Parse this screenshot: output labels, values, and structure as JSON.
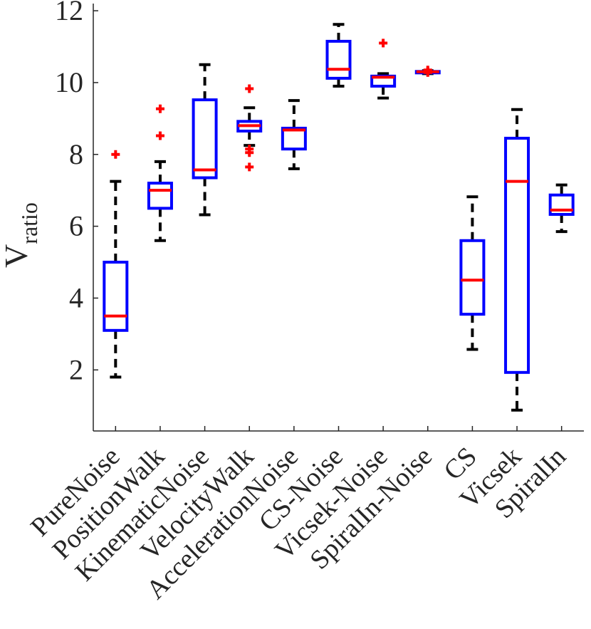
{
  "chart_data": {
    "type": "box",
    "title": "",
    "xlabel": "",
    "ylabel_main": "V",
    "ylabel_sub": "ratio",
    "ylim": [
      0.3,
      12.2
    ],
    "yticks": [
      2,
      4,
      6,
      8,
      10,
      12
    ],
    "grid": false,
    "colors": {
      "box": "#0000ff",
      "median": "#ff0000",
      "whisker": "#000000",
      "outlier": "#ff0000"
    },
    "categories": [
      "PureNoise",
      "PositionWalk",
      "KinematicNoise",
      "VelocityWalk",
      "AccelerationNoise",
      "CS-Noise",
      "Vicsek-Noise",
      "SpiralIn-Noise",
      "CS",
      "Vicsek",
      "SpiralIn"
    ],
    "boxes": [
      {
        "name": "PureNoise",
        "whisker_low": 1.8,
        "q1": 3.1,
        "median": 3.5,
        "q3": 5.0,
        "whisker_high": 7.25,
        "outliers": [
          8.0
        ]
      },
      {
        "name": "PositionWalk",
        "whisker_low": 5.6,
        "q1": 6.5,
        "median": 7.0,
        "q3": 7.2,
        "whisker_high": 7.8,
        "outliers": [
          8.52,
          9.27
        ]
      },
      {
        "name": "KinematicNoise",
        "whisker_low": 6.32,
        "q1": 7.35,
        "median": 7.57,
        "q3": 9.52,
        "whisker_high": 10.5,
        "outliers": []
      },
      {
        "name": "VelocityWalk",
        "whisker_low": 8.25,
        "q1": 8.65,
        "median": 8.8,
        "q3": 8.92,
        "whisker_high": 9.3,
        "outliers": [
          7.65,
          8.05,
          8.15,
          9.83
        ]
      },
      {
        "name": "AccelerationNoise",
        "whisker_low": 7.6,
        "q1": 8.15,
        "median": 8.68,
        "q3": 8.73,
        "whisker_high": 9.5,
        "outliers": []
      },
      {
        "name": "CS-Noise",
        "whisker_low": 9.9,
        "q1": 10.12,
        "median": 10.37,
        "q3": 11.15,
        "whisker_high": 11.62,
        "outliers": []
      },
      {
        "name": "Vicsek-Noise",
        "whisker_low": 9.57,
        "q1": 9.9,
        "median": 10.15,
        "q3": 10.18,
        "whisker_high": 10.25,
        "outliers": [
          11.1
        ]
      },
      {
        "name": "SpiralIn-Noise",
        "whisker_low": 10.25,
        "q1": 10.27,
        "median": 10.3,
        "q3": 10.31,
        "whisker_high": 10.33,
        "outliers": [
          10.28,
          10.32,
          10.35
        ]
      },
      {
        "name": "CS",
        "whisker_low": 2.57,
        "q1": 3.55,
        "median": 4.5,
        "q3": 5.6,
        "whisker_high": 6.82,
        "outliers": []
      },
      {
        "name": "Vicsek",
        "whisker_low": 0.88,
        "q1": 1.93,
        "median": 7.25,
        "q3": 8.45,
        "whisker_high": 9.25,
        "outliers": []
      },
      {
        "name": "SpiralIn",
        "whisker_low": 5.85,
        "q1": 6.33,
        "median": 6.45,
        "q3": 6.87,
        "whisker_high": 7.15,
        "outliers": []
      }
    ]
  }
}
